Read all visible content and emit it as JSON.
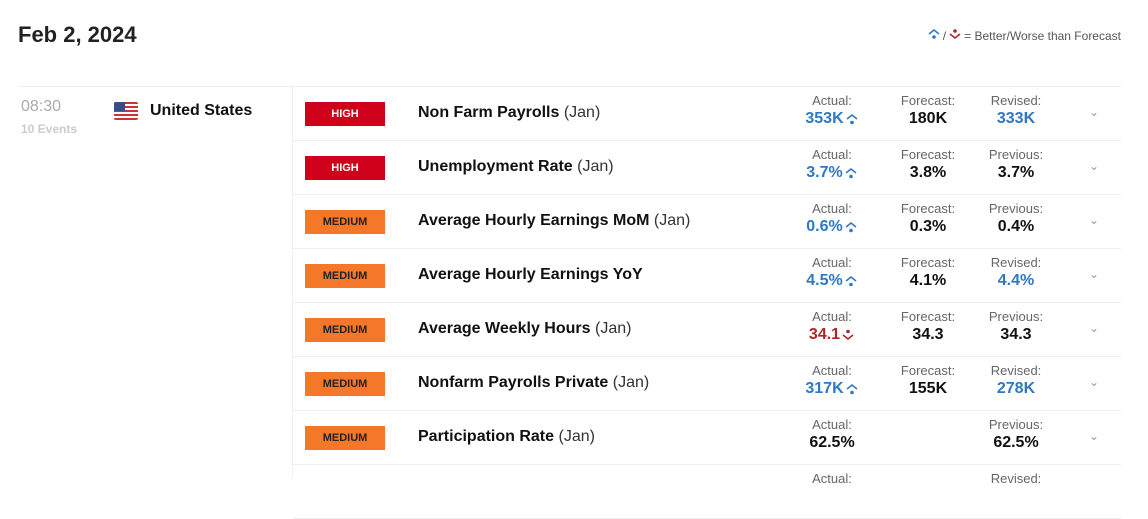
{
  "header": {
    "date": "Feb 2, 2024",
    "legend": "= Better/Worse than Forecast",
    "legend_sep": "/"
  },
  "group": {
    "time": "08:30",
    "events": "10 Events",
    "country": "United States",
    "flag_icon": "us-flag-icon"
  },
  "colors": {
    "high": "#d0021b",
    "medium": "#f5782a",
    "better": "#2f78c4",
    "worse": "#b0242a"
  },
  "rows": [
    {
      "impact": "HIGH",
      "level": "high",
      "name": "Non Farm Payrolls",
      "period": "(Jan)",
      "actual_label": "Actual:",
      "actual": "353K",
      "actual_status": "better",
      "forecast_label": "Forecast:",
      "forecast": "180K",
      "prev_label": "Revised:",
      "prev": "333K",
      "prev_status": "better"
    },
    {
      "impact": "HIGH",
      "level": "high",
      "name": "Unemployment Rate",
      "period": "(Jan)",
      "actual_label": "Actual:",
      "actual": "3.7%",
      "actual_status": "better",
      "forecast_label": "Forecast:",
      "forecast": "3.8%",
      "prev_label": "Previous:",
      "prev": "3.7%",
      "prev_status": ""
    },
    {
      "impact": "MEDIUM",
      "level": "medium",
      "name": "Average Hourly Earnings MoM",
      "period": "(Jan)",
      "actual_label": "Actual:",
      "actual": "0.6%",
      "actual_status": "better",
      "forecast_label": "Forecast:",
      "forecast": "0.3%",
      "prev_label": "Previous:",
      "prev": "0.4%",
      "prev_status": ""
    },
    {
      "impact": "MEDIUM",
      "level": "medium",
      "name": "Average Hourly Earnings YoY",
      "period": "",
      "actual_label": "Actual:",
      "actual": "4.5%",
      "actual_status": "better",
      "forecast_label": "Forecast:",
      "forecast": "4.1%",
      "prev_label": "Revised:",
      "prev": "4.4%",
      "prev_status": "better"
    },
    {
      "impact": "MEDIUM",
      "level": "medium",
      "name": "Average Weekly Hours",
      "period": "(Jan)",
      "actual_label": "Actual:",
      "actual": "34.1",
      "actual_status": "worse",
      "forecast_label": "Forecast:",
      "forecast": "34.3",
      "prev_label": "Previous:",
      "prev": "34.3",
      "prev_status": ""
    },
    {
      "impact": "MEDIUM",
      "level": "medium",
      "name": "Nonfarm Payrolls Private",
      "period": "(Jan)",
      "actual_label": "Actual:",
      "actual": "317K",
      "actual_status": "better",
      "forecast_label": "Forecast:",
      "forecast": "155K",
      "prev_label": "Revised:",
      "prev": "278K",
      "prev_status": "better"
    },
    {
      "impact": "MEDIUM",
      "level": "medium",
      "name": "Participation Rate",
      "period": "(Jan)",
      "actual_label": "Actual:",
      "actual": "62.5%",
      "actual_status": "",
      "forecast_label": "",
      "forecast": "",
      "prev_label": "Previous:",
      "prev": "62.5%",
      "prev_status": ""
    },
    {
      "impact": "",
      "level": "",
      "name": "",
      "period": "",
      "actual_label": "Actual:",
      "actual": "",
      "actual_status": "",
      "forecast_label": "",
      "forecast": "",
      "prev_label": "Revised:",
      "prev": "",
      "prev_status": ""
    }
  ]
}
